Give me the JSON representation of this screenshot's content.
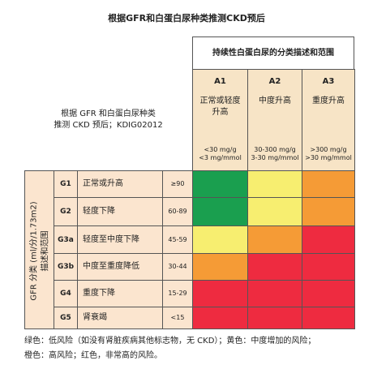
{
  "header": {
    "title": "根据GFR和白蛋白尿种类推测CKD预后",
    "left_lines": [
      "根据 GFR 和白蛋白尿种类",
      "推测 CKD 预后；KDIG02012"
    ],
    "albuminuria_title": "持续性白蛋白尿的分类描述和范围"
  },
  "columns": [
    {
      "code": "A1",
      "desc": [
        "正常或轻度",
        "升高"
      ],
      "range": [
        "<30 mg/g",
        "<3 mg/mmol"
      ]
    },
    {
      "code": "A2",
      "desc": [
        "中度升高"
      ],
      "range": [
        "30-300 mg/g",
        "3-30 mg/mmol"
      ]
    },
    {
      "code": "A3",
      "desc": [
        "重度升高"
      ],
      "range": [
        ">300 mg/g",
        ">30 mg/mmol"
      ]
    }
  ],
  "gfr_label": [
    "GFR 分类 (ml/分/1.73m2)",
    "描述和范围"
  ],
  "rows": [
    {
      "code": "G1",
      "desc": "正常或升高",
      "range": "≥90",
      "colors": [
        "#1a9f4f",
        "#f7ee70",
        "#f59b36"
      ]
    },
    {
      "code": "G2",
      "desc": "轻度下降",
      "range": "60-89",
      "colors": [
        "#1a9f4f",
        "#f7ee70",
        "#f59b36"
      ]
    },
    {
      "code": "G3a",
      "desc": "轻度至中度下降",
      "range": "45-59",
      "colors": [
        "#f7ee70",
        "#f59b36",
        "#ee2b40"
      ]
    },
    {
      "code": "G3b",
      "desc": "中度至重度降低",
      "range": "30-44",
      "colors": [
        "#f59b36",
        "#ee2b40",
        "#ee2b40"
      ]
    },
    {
      "code": "G4",
      "desc": "重度下降",
      "range": "15-29",
      "colors": [
        "#ee2b40",
        "#ee2b40",
        "#ee2b40"
      ]
    },
    {
      "code": "G5",
      "desc": "肾衰竭",
      "range": "<15",
      "colors": [
        "#ee2b40",
        "#ee2b40",
        "#ee2b40"
      ]
    }
  ],
  "footer": [
    "绿色：低风险（如没有肾脏疾病其他标志物，无 CKD）；黄色：中度增加的风险；",
    "橙色：高风险；红色，非常高的风险。"
  ]
}
